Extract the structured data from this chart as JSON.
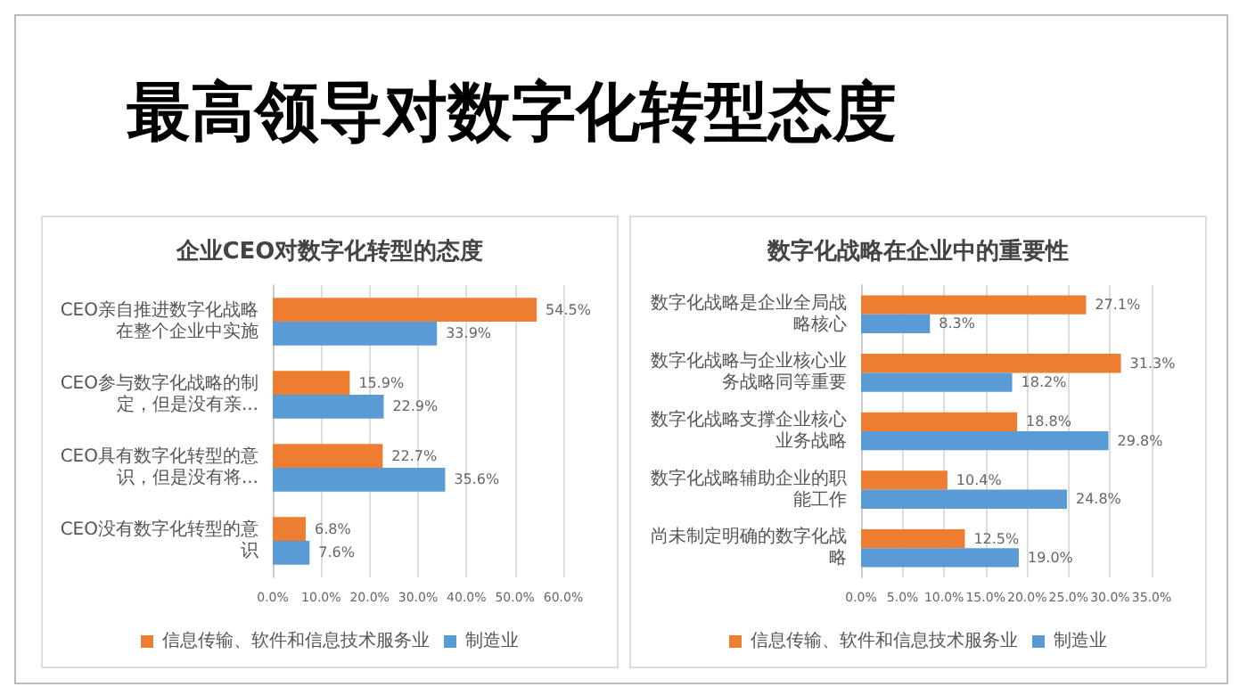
{
  "chart_data": [
    {
      "type": "other",
      "title": "最高领导对数字化转型态度"
    },
    {
      "type": "bar",
      "orientation": "horizontal",
      "title": "企业CEO对数字化转型的态度",
      "categories": [
        "CEO亲自推进数字化战略在整个企业中实施",
        "CEO参与数字化战略的制定，但是没有亲...",
        "CEO具有数字化转型的意识，但是没有将...",
        "CEO没有数字化转型的意识"
      ],
      "series": [
        {
          "name": "信息传输、软件和信息技术服务业",
          "color": "#ed7d31",
          "values": [
            54.5,
            15.9,
            22.7,
            6.8
          ],
          "value_labels": [
            "54.5%",
            "15.9%",
            "22.7%",
            "6.8%"
          ]
        },
        {
          "name": "制造业",
          "color": "#5b9bd5",
          "values": [
            33.9,
            22.9,
            35.6,
            7.6
          ],
          "value_labels": [
            "33.9%",
            "22.9%",
            "35.6%",
            "7.6%"
          ]
        }
      ],
      "xlim": [
        0,
        60
      ],
      "xticks": [
        {
          "value": 0,
          "label": "0.0%"
        },
        {
          "value": 10,
          "label": "10.0%"
        },
        {
          "value": 20,
          "label": "20.0%"
        },
        {
          "value": 30,
          "label": "30.0%"
        },
        {
          "value": 40,
          "label": "40.0%"
        },
        {
          "value": 50,
          "label": "50.0%"
        },
        {
          "value": 60,
          "label": "60.0%"
        }
      ],
      "grid": "x",
      "legend": "bottom"
    },
    {
      "type": "bar",
      "orientation": "horizontal",
      "title": "数字化战略在企业中的重要性",
      "categories": [
        "数字化战略是企业全局战略核心",
        "数字化战略与企业核心业务战略同等重要",
        "数字化战略支撑企业核心业务战略",
        "数字化战略辅助企业的职能工作",
        "尚未制定明确的数字化战略"
      ],
      "series": [
        {
          "name": "信息传输、软件和信息技术服务业",
          "color": "#ed7d31",
          "values": [
            27.1,
            31.3,
            18.8,
            10.4,
            12.5
          ],
          "value_labels": [
            "27.1%",
            "31.3%",
            "18.8%",
            "10.4%",
            "12.5%"
          ]
        },
        {
          "name": "制造业",
          "color": "#5b9bd5",
          "values": [
            8.3,
            18.2,
            29.8,
            24.8,
            19.0
          ],
          "value_labels": [
            "8.3%",
            "18.2%",
            "29.8%",
            "24.8%",
            "19.0%"
          ]
        }
      ],
      "xlim": [
        0,
        35
      ],
      "xticks": [
        {
          "value": 0,
          "label": "0.0%"
        },
        {
          "value": 5,
          "label": "5.0%"
        },
        {
          "value": 10,
          "label": "10.0%"
        },
        {
          "value": 15,
          "label": "15.0%"
        },
        {
          "value": 20,
          "label": "20.0%"
        },
        {
          "value": 25,
          "label": "25.0%"
        },
        {
          "value": 30,
          "label": "30.0%"
        },
        {
          "value": 35,
          "label": "35.0%"
        }
      ],
      "grid": "x",
      "legend": "bottom"
    }
  ]
}
